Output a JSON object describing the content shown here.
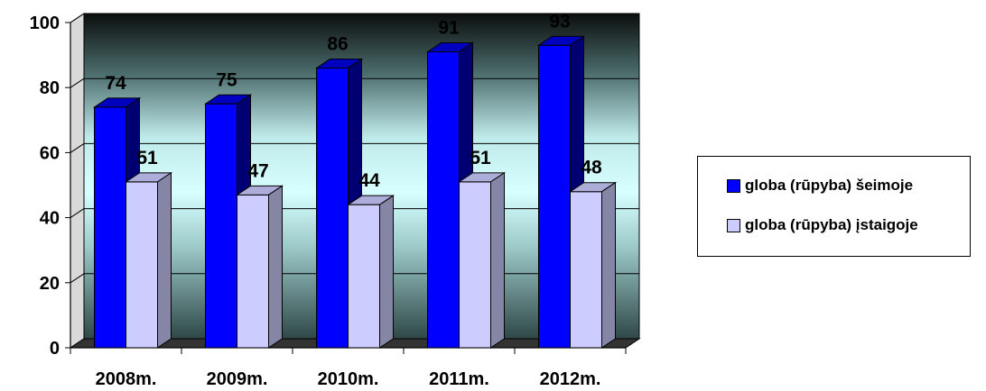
{
  "chart_data": {
    "type": "bar",
    "categories": [
      "2008m.",
      "2009m.",
      "2010m.",
      "2011m.",
      "2012m."
    ],
    "series": [
      {
        "name": "globa (rūpyba) šeimoje",
        "values": [
          74,
          75,
          86,
          91,
          93
        ],
        "color": "#0000FF"
      },
      {
        "name": "globa (rūpyba) įstaigoje",
        "values": [
          51,
          47,
          44,
          51,
          48
        ],
        "color": "#CCCCFF"
      }
    ],
    "ylim": [
      0,
      100
    ],
    "yticks": [
      "0",
      "20",
      "40",
      "60",
      "80",
      "100"
    ],
    "grid": true,
    "legend_position": "right",
    "three_d": true
  }
}
